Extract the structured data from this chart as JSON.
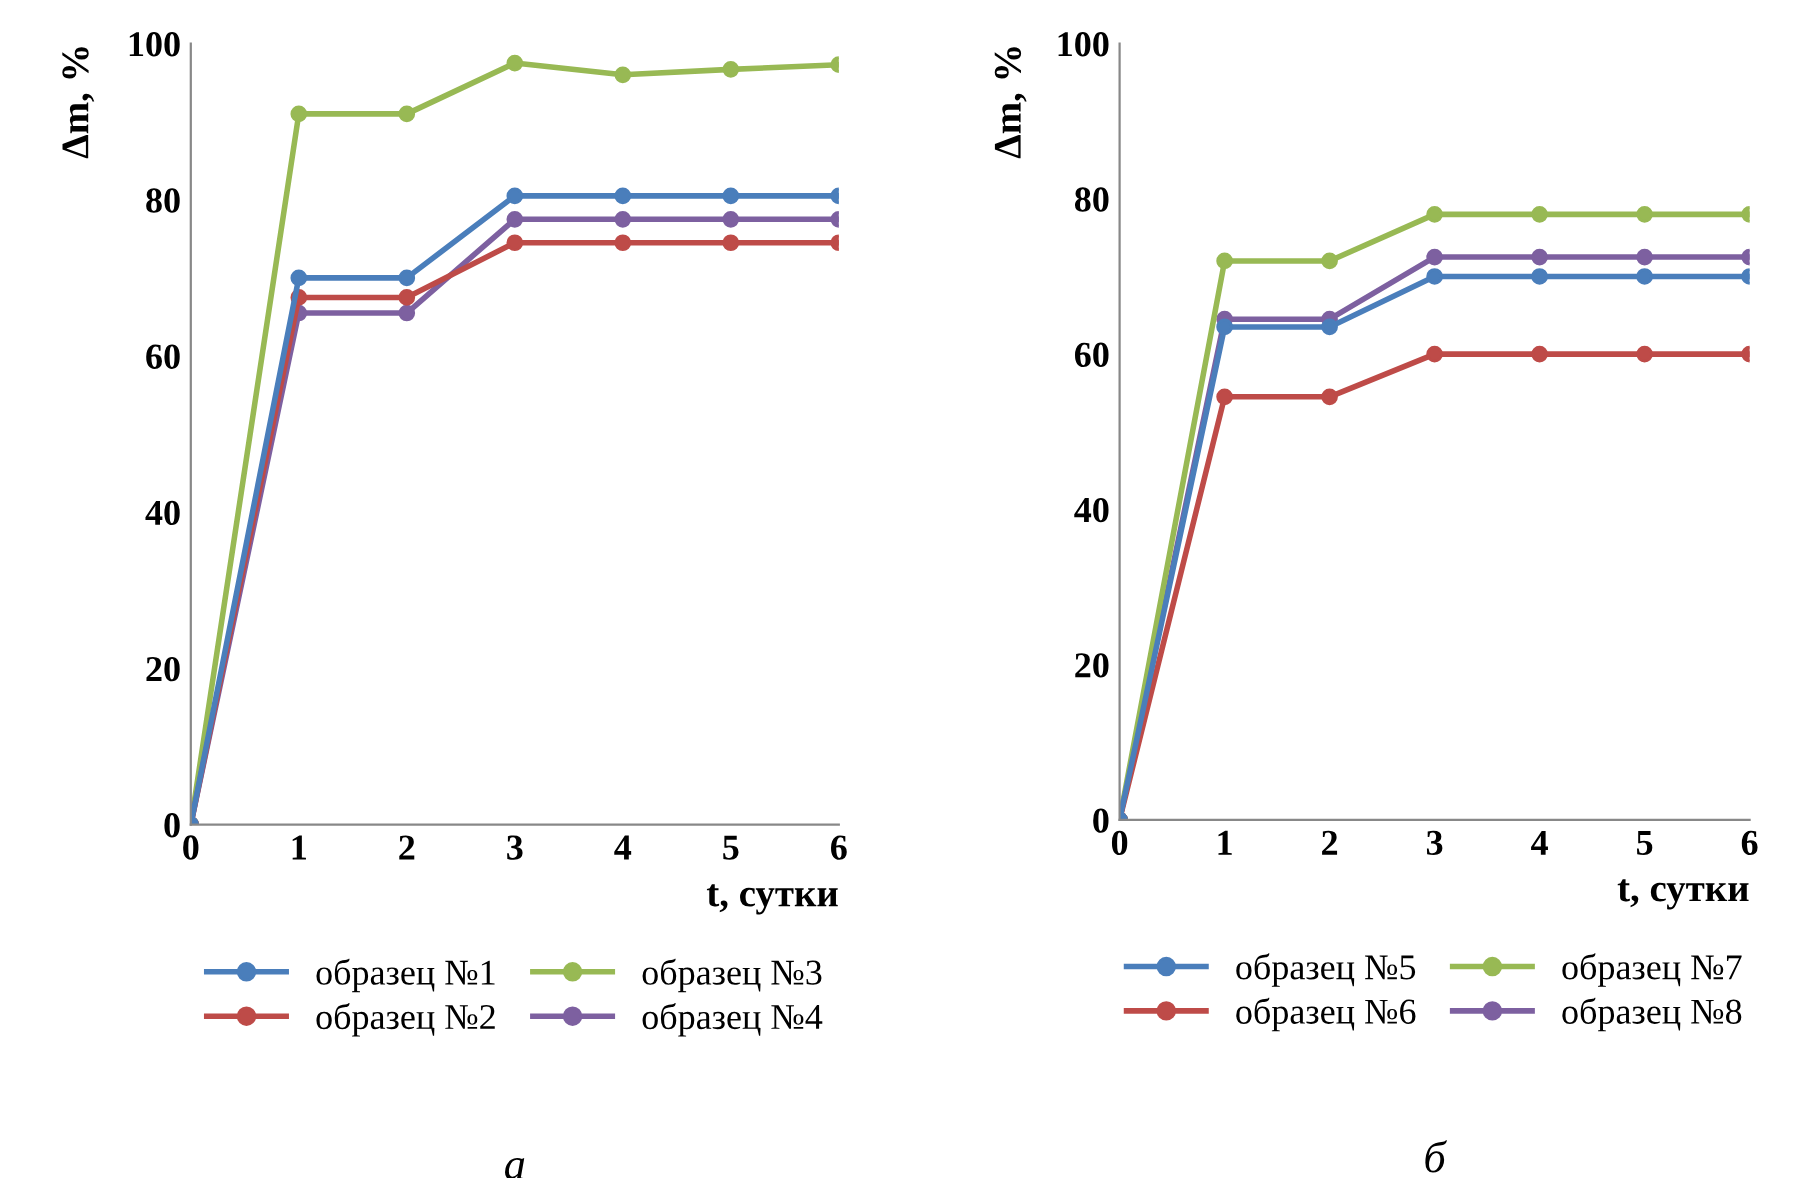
{
  "chart_data": [
    {
      "type": "line",
      "xlabel": "t, сутки",
      "ylabel": "Δm, %",
      "x": [
        0,
        1,
        2,
        3,
        4,
        5,
        6
      ],
      "xlim": [
        0,
        6
      ],
      "xticks": [
        0,
        1,
        2,
        3,
        4,
        5,
        6
      ],
      "ylim": [
        0,
        100
      ],
      "yticks": [
        0,
        20,
        40,
        60,
        80,
        100
      ],
      "grid": false,
      "legend": "bottom",
      "marker": "circle",
      "line_style": "solid",
      "annotations": [
        "а"
      ],
      "series": [
        {
          "name": "образец №1",
          "color": "#4a7ebb",
          "values": [
            0,
            70,
            70,
            80.5,
            80.5,
            80.5,
            80.5
          ]
        },
        {
          "name": "образец №2",
          "color": "#be4b48",
          "values": [
            0,
            67.5,
            67.5,
            74.5,
            74.5,
            74.5,
            74.5
          ]
        },
        {
          "name": "образец №3",
          "color": "#98b954",
          "values": [
            0,
            91,
            91,
            97.5,
            96,
            96.7,
            97.3
          ]
        },
        {
          "name": "образец №4",
          "color": "#7d60a0",
          "values": [
            0,
            65.5,
            65.5,
            77.5,
            77.5,
            77.5,
            77.5
          ]
        }
      ]
    },
    {
      "type": "line",
      "xlabel": "t, сутки",
      "ylabel": "Δm, %",
      "x": [
        0,
        1,
        2,
        3,
        4,
        5,
        6
      ],
      "xlim": [
        0,
        6
      ],
      "xticks": [
        0,
        1,
        2,
        3,
        4,
        5,
        6
      ],
      "ylim": [
        0,
        100
      ],
      "yticks": [
        0,
        20,
        40,
        60,
        80,
        100
      ],
      "grid": false,
      "legend": "bottom",
      "marker": "circle",
      "line_style": "solid",
      "annotations": [
        "б"
      ],
      "series": [
        {
          "name": "образец №5",
          "color": "#4a7ebb",
          "values": [
            0,
            63.5,
            63.5,
            70,
            70,
            70,
            70
          ]
        },
        {
          "name": "образец №6",
          "color": "#be4b48",
          "values": [
            0,
            54.5,
            54.5,
            60,
            60,
            60,
            60
          ]
        },
        {
          "name": "образец №7",
          "color": "#98b954",
          "values": [
            0,
            72,
            72,
            78,
            78,
            78,
            78
          ]
        },
        {
          "name": "образец №8",
          "color": "#7d60a0",
          "values": [
            0,
            64.5,
            64.5,
            72.5,
            72.5,
            72.5,
            72.5
          ]
        }
      ]
    }
  ]
}
